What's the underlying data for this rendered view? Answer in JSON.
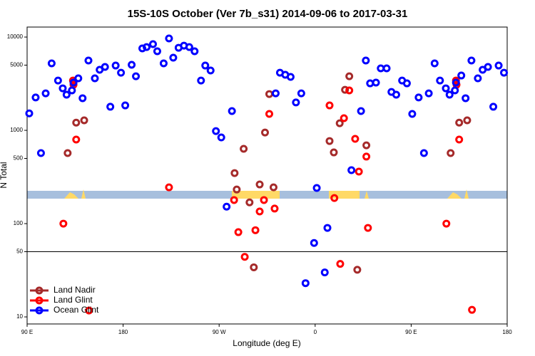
{
  "chart_data": {
    "type": "scatter",
    "title": "15S-10S October (Ver 7b_s31)   2014-09-06 to 2017-03-31",
    "x_label": "Longitude (deg E)",
    "y_label": "N Total",
    "log_y": true,
    "xlim": [
      90,
      540
    ],
    "ylim": [
      8.4,
      12800
    ],
    "xticks": [
      {
        "value": 90,
        "label": "90 E"
      },
      180,
      {
        "value": 270,
        "label": "90 W"
      },
      {
        "value": 360,
        "label": "0"
      },
      {
        "value": 450,
        "label": "90 E"
      },
      {
        "value": 540,
        "label": "180"
      }
    ],
    "yticks": [
      10,
      50,
      100,
      500,
      1000,
      5000,
      10000
    ],
    "hline": 50,
    "legend": "bottom left",
    "series": [
      {
        "name": "Land Nadir",
        "color": "#a52a2a",
        "x": [
          128,
          136,
          143.5,
          284.5,
          286.5,
          293,
          298.5,
          302.5,
          308,
          313,
          317,
          321,
          373.5,
          377.5,
          383,
          388,
          392,
          399.5,
          408,
          487,
          495,
          502.5
        ],
        "values": [
          570,
          1210,
          1280,
          348,
          232,
          634,
          169,
          34,
          263,
          948,
          2450,
          245,
          768,
          580,
          1190,
          2720,
          3800,
          32,
          691,
          570,
          1210,
          1280
        ]
      },
      {
        "name": "Land Glint",
        "color": "#ff0000",
        "x": [
          124,
          133,
          133.5,
          136,
          148,
          223,
          284,
          288,
          294,
          304,
          308,
          312,
          317,
          322,
          373.5,
          378,
          383.5,
          387,
          392,
          397.5,
          401,
          408,
          409.5,
          483,
          492,
          492.5,
          495,
          507
        ],
        "values": [
          100,
          3420,
          3080,
          796,
          11.7,
          245,
          179,
          81,
          44,
          85,
          135,
          179,
          1500,
          145,
          1850,
          188,
          37,
          1350,
          2680,
          810,
          361,
          523,
          90,
          100,
          3420,
          3080,
          796,
          11.9
        ]
      },
      {
        "name": "Ocean Glint",
        "color": "#0000ff",
        "x": [
          92,
          98,
          103,
          107.4,
          113,
          119,
          123.4,
          127,
          132,
          133.5,
          138,
          142,
          147.5,
          153.5,
          158,
          163,
          168,
          173,
          178,
          182,
          188,
          192,
          198,
          202,
          208,
          212,
          218,
          223,
          227,
          232,
          237,
          242,
          247,
          253,
          257,
          262,
          267,
          272,
          277,
          282,
          323,
          327,
          332,
          337,
          342,
          347,
          351,
          359,
          361.5,
          369,
          371.5,
          394,
          403,
          407.5,
          411.5,
          417,
          421.5,
          427,
          431.5,
          436,
          441.5,
          446,
          451,
          457,
          462,
          466.5,
          472,
          477,
          482.5,
          486,
          491,
          492,
          497,
          501,
          506.5,
          512.5,
          517,
          522,
          527,
          532,
          537
        ],
        "values": [
          1520,
          2250,
          570,
          2490,
          5220,
          3420,
          2820,
          2410,
          2680,
          3250,
          3610,
          2210,
          5600,
          3610,
          4460,
          4780,
          1790,
          4950,
          4150,
          1850,
          5040,
          3800,
          7550,
          7810,
          8390,
          7040,
          5220,
          9660,
          6010,
          7680,
          8090,
          7810,
          7040,
          3420,
          4950,
          4380,
          982,
          839,
          152,
          1610,
          2490,
          4150,
          3940,
          3740,
          1990,
          2490,
          23,
          62,
          241,
          30,
          90,
          374,
          1610,
          5600,
          3190,
          3250,
          4620,
          4620,
          2580,
          2410,
          3420,
          3190,
          1500,
          2250,
          570,
          2490,
          5220,
          3420,
          2820,
          2410,
          2680,
          3250,
          3870,
          2210,
          5600,
          3610,
          4460,
          4780,
          1790,
          4950,
          4150
        ]
      }
    ]
  }
}
